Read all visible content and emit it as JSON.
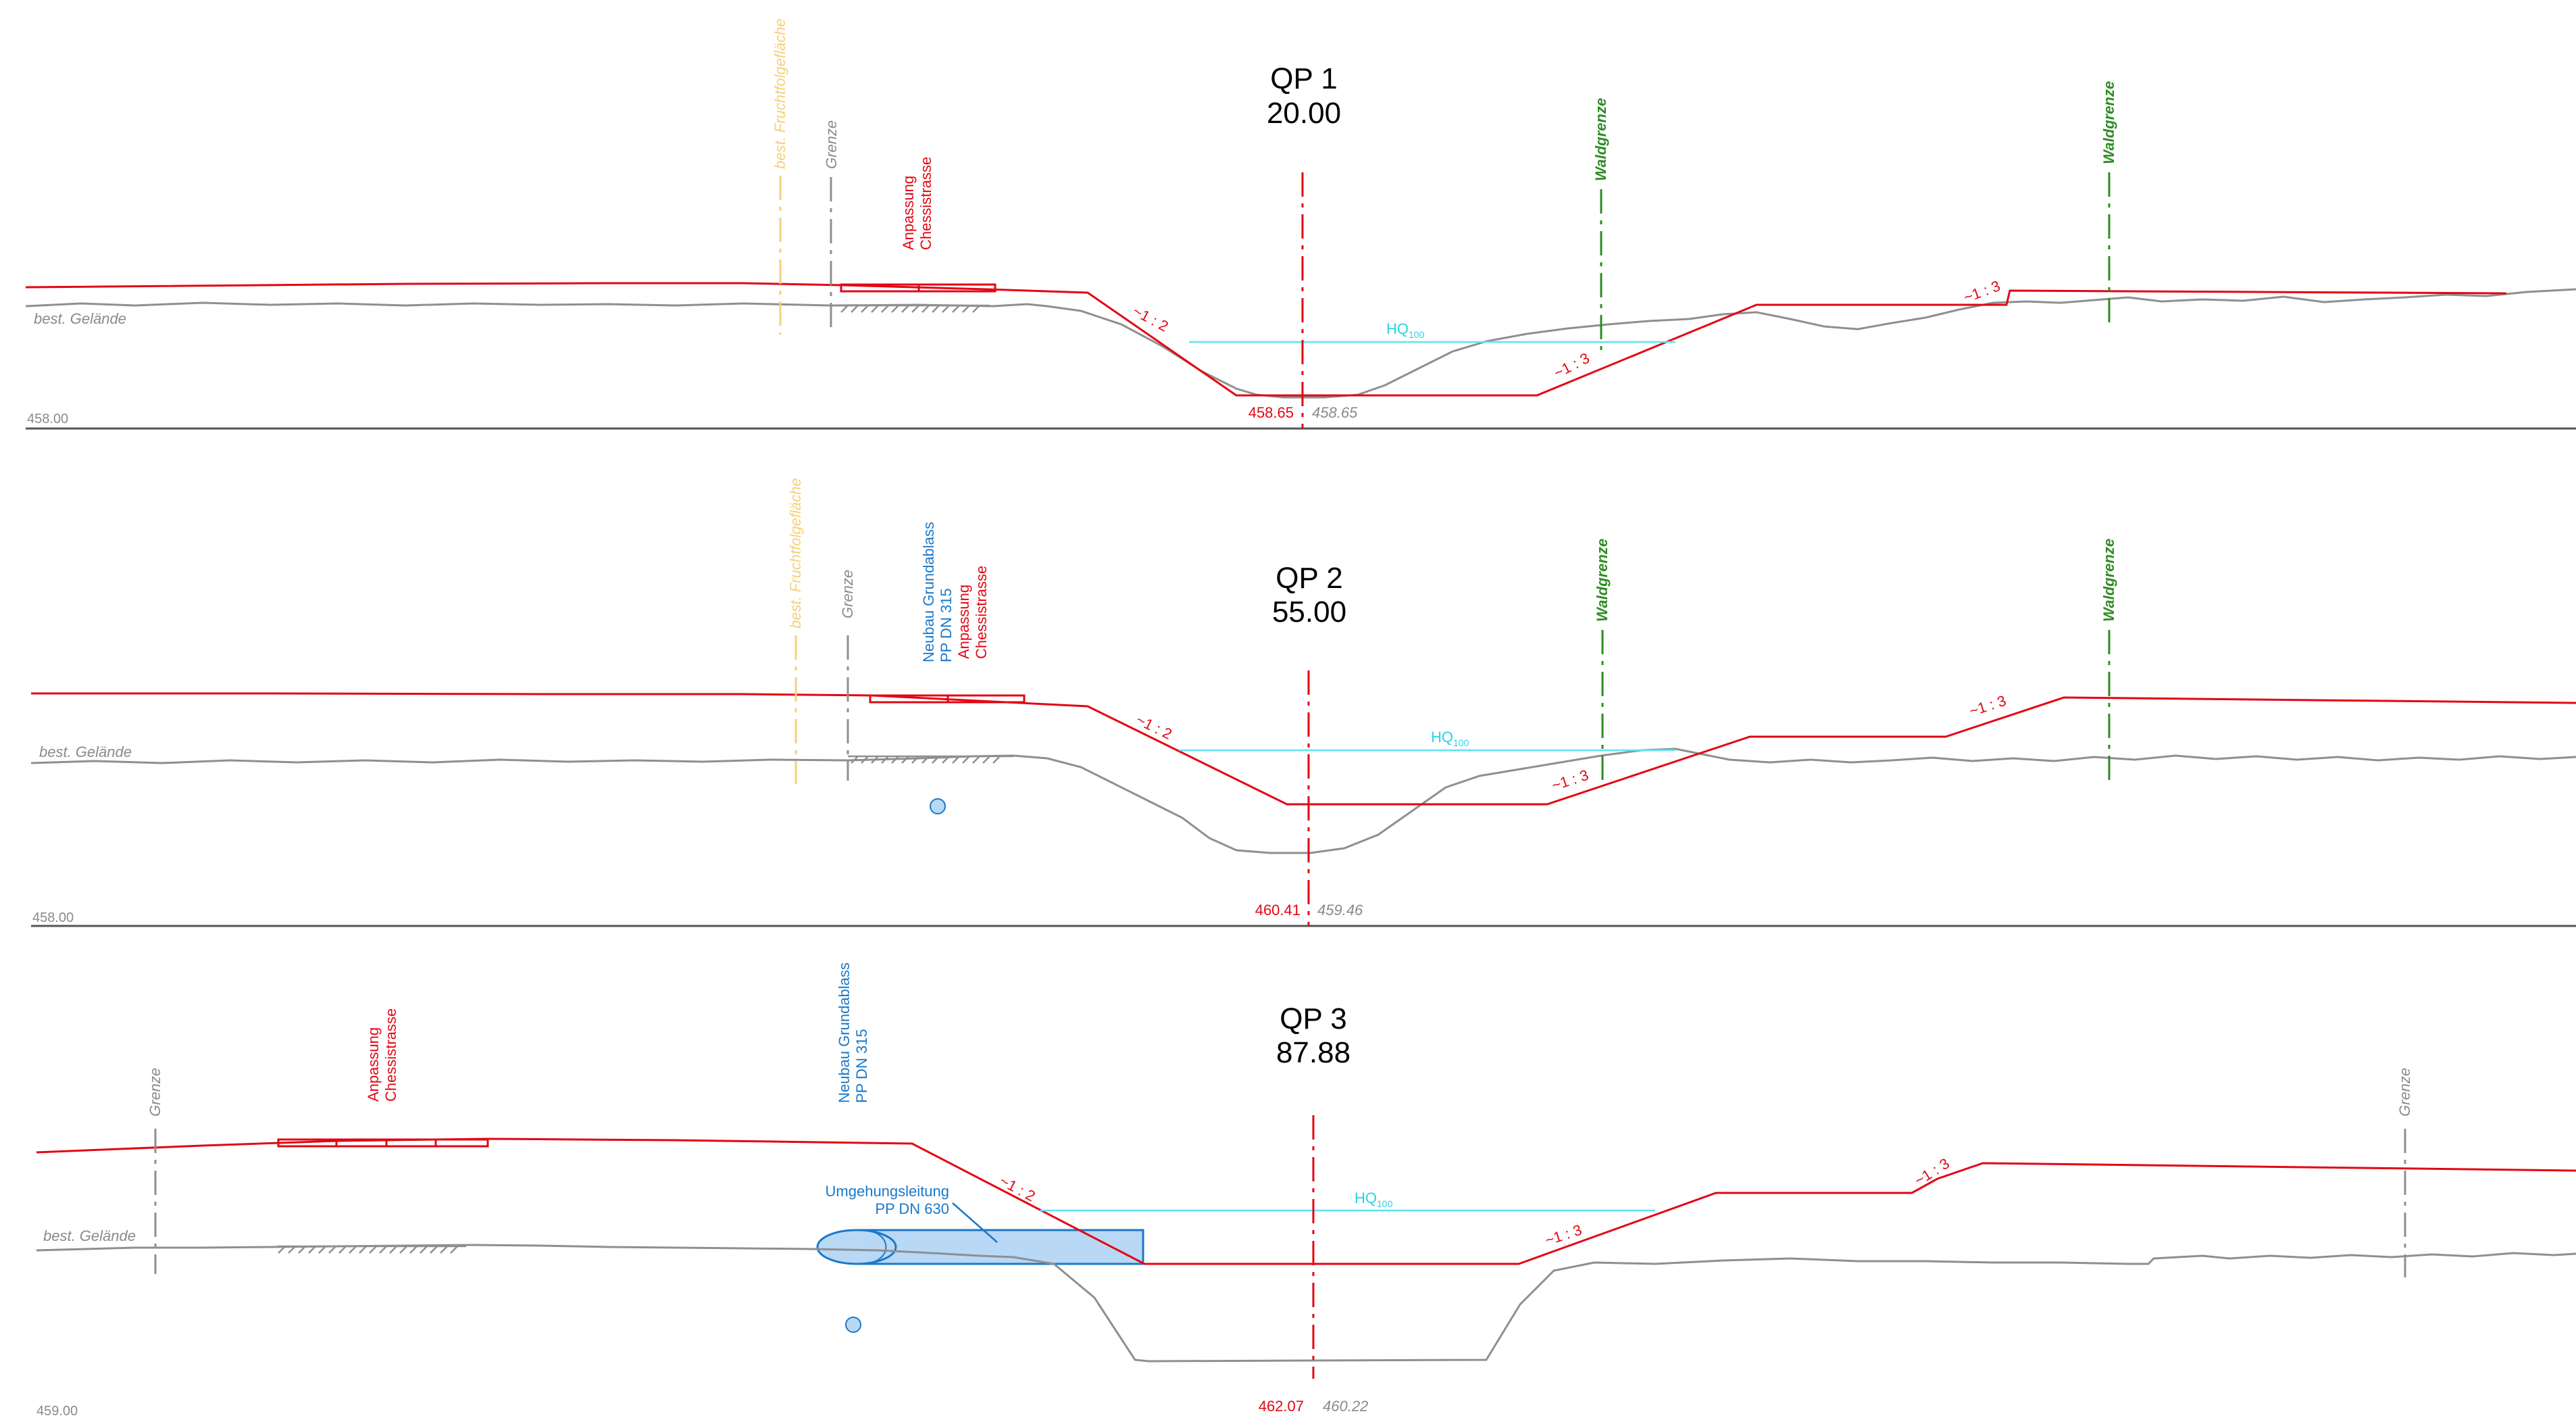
{
  "common": {
    "terrain_label": "best. Gelände",
    "slope_2": "~1 : 2",
    "slope_3": "~1 : 3",
    "hq_main": "HQ",
    "hq_sub": "100",
    "boundary": "Grenze",
    "forest": "Waldgrenze",
    "crop_area": "best. Fruchtfolgefläche"
  },
  "qp1": {
    "name": "QP 1",
    "station": "20.00",
    "datum": "458.00",
    "elev_design": "458.65",
    "elev_terrain": "458.65",
    "road_line1": "Anpassung",
    "road_line2": "Chessistrasse"
  },
  "qp2": {
    "name": "QP 2",
    "station": "55.00",
    "datum": "458.00",
    "elev_design": "460.41",
    "elev_terrain": "459.46",
    "blue_line1": "Neubau Grundablass",
    "blue_line2": "PP DN 315",
    "road_line1": "Anpassung",
    "road_line2": "Chessistrasse"
  },
  "qp3": {
    "name": "QP 3",
    "station": "87.88",
    "datum": "459.00",
    "elev_design": "462.07",
    "elev_terrain": "460.22",
    "road_line1": "Anpassung",
    "road_line2": "Chessistrasse",
    "blue_line1": "Neubau Grundablass",
    "blue_line2": "PP DN 315",
    "bypass_line1": "Umgehungsleitung",
    "bypass_line2": "PP DN 630"
  },
  "colors": {
    "design": "#e30613",
    "terrain": "#8f8f8f",
    "water": "#5de6f0",
    "forest": "#2e8b22",
    "pipe": "#1b78c8",
    "crop": "#f6cf7a"
  }
}
